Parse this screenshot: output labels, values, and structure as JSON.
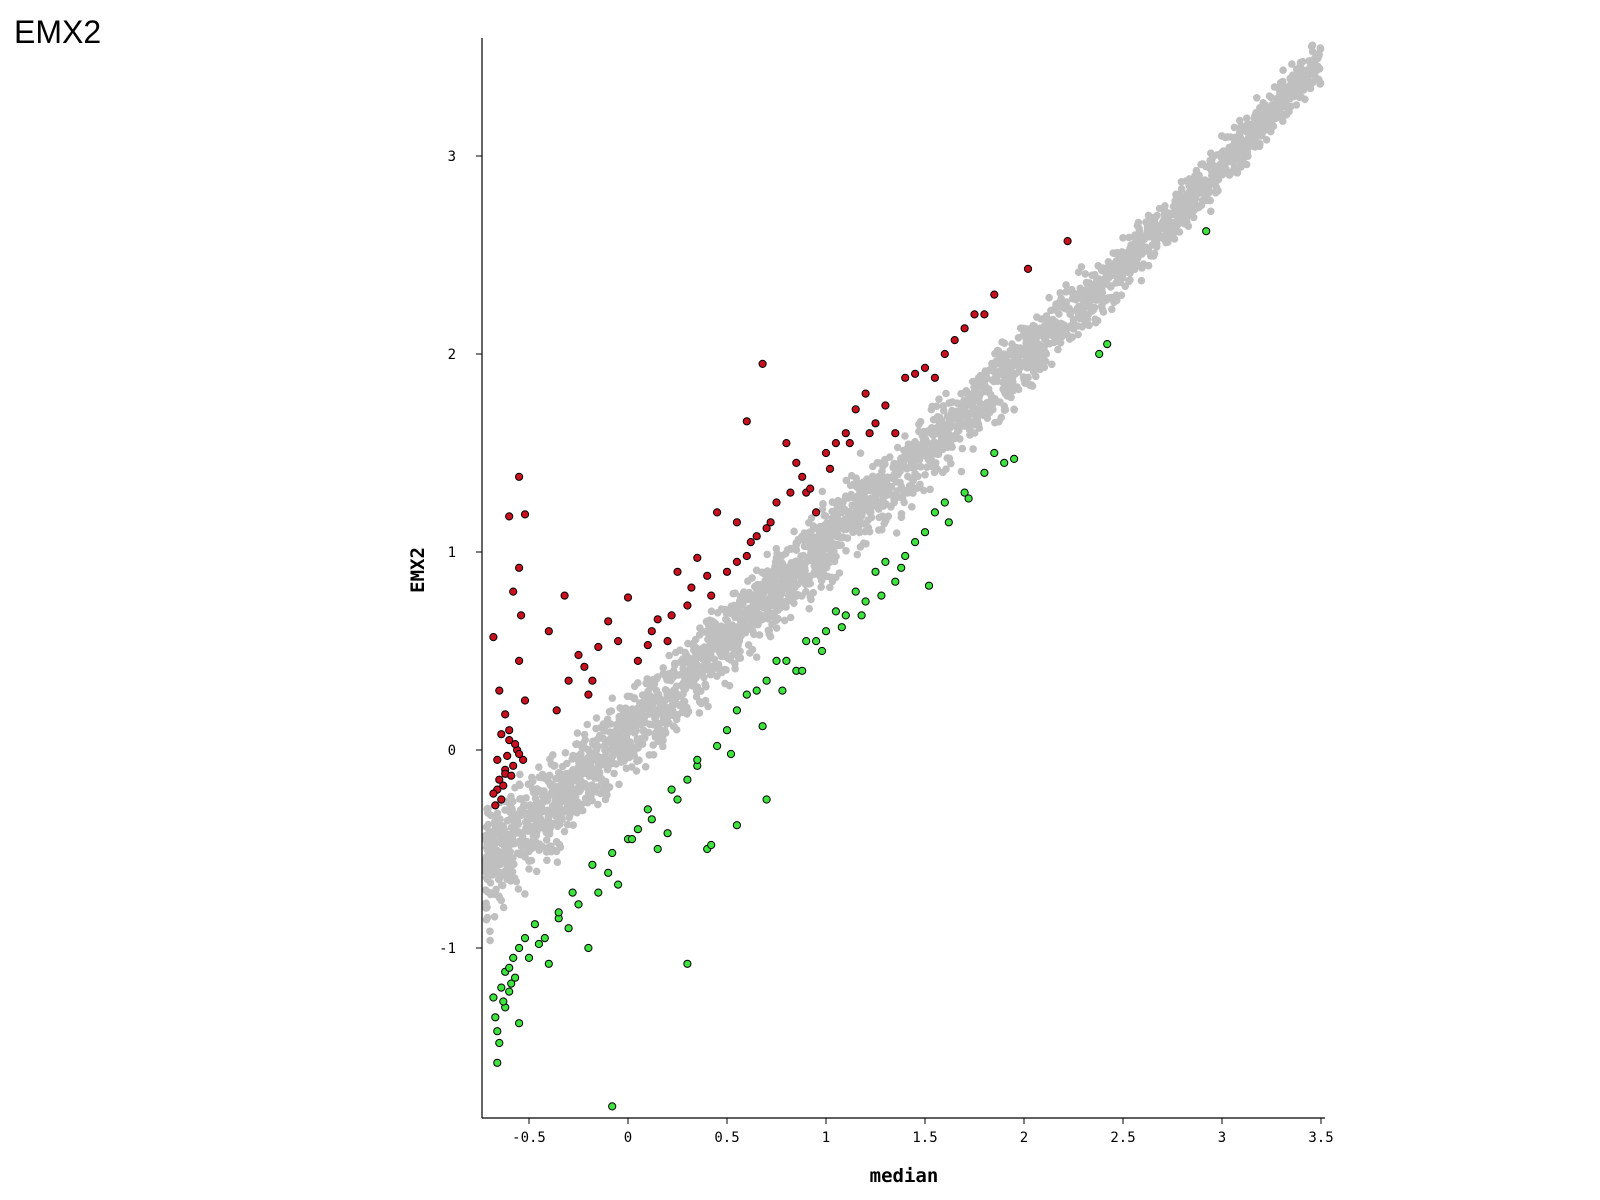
{
  "slide": {
    "title": "EMX2"
  },
  "chart_data": {
    "type": "scatter",
    "xlabel": "median",
    "ylabel": "EMX2",
    "xlim": [
      -0.73,
      3.55
    ],
    "ylim": [
      -1.85,
      3.6
    ],
    "x_ticks": [
      {
        "value": -0.5,
        "label": "-0.5"
      },
      {
        "value": 0,
        "label": "0"
      },
      {
        "value": 0.5,
        "label": "0.5"
      },
      {
        "value": 1,
        "label": "1"
      },
      {
        "value": 1.5,
        "label": "1.5"
      },
      {
        "value": 2,
        "label": "2"
      },
      {
        "value": 2.5,
        "label": "2.5"
      },
      {
        "value": 3,
        "label": "3"
      },
      {
        "value": 3.5,
        "label": "3.5"
      }
    ],
    "y_ticks": [
      {
        "value": -1,
        "label": "-1"
      },
      {
        "value": 0,
        "label": "0"
      },
      {
        "value": 1,
        "label": "1"
      },
      {
        "value": 2,
        "label": "2"
      },
      {
        "value": 3,
        "label": "3"
      }
    ],
    "colors": {
      "background_points": "#bfbfbf",
      "up": "#c8101e",
      "down": "#3fe33f",
      "outline": "#000000"
    },
    "background_trend": {
      "description_points": [
        [
          -0.7,
          -0.55
        ],
        [
          0,
          0.08
        ],
        [
          0.5,
          0.57
        ],
        [
          1,
          1.05
        ],
        [
          1.5,
          1.5
        ],
        [
          2,
          1.98
        ],
        [
          2.5,
          2.45
        ],
        [
          3,
          2.95
        ],
        [
          3.5,
          3.5
        ]
      ],
      "band_halfwidth": [
        [
          -0.7,
          0.45
        ],
        [
          0,
          0.3
        ],
        [
          1,
          0.3
        ],
        [
          2,
          0.25
        ],
        [
          3,
          0.18
        ]
      ]
    },
    "series": [
      {
        "role": "up",
        "x": [
          -0.68,
          -0.65,
          -0.62,
          -0.55,
          -0.55,
          -0.6,
          -0.58,
          -0.54,
          -0.55,
          -0.52,
          -0.4,
          -0.36,
          -0.32,
          -0.25,
          -0.2,
          -0.18,
          -0.1,
          -0.05,
          0.0,
          0.05,
          0.1,
          0.15,
          0.2,
          0.25,
          0.3,
          0.35,
          0.4,
          0.45,
          0.5,
          0.55,
          0.6,
          0.65,
          0.7,
          0.75,
          0.8,
          0.85,
          0.9,
          0.95,
          1.0,
          1.05,
          1.1,
          1.15,
          1.2,
          1.25,
          1.3,
          1.35,
          1.4,
          1.45,
          1.5,
          1.55,
          1.6,
          1.65,
          1.7,
          1.75,
          1.8,
          1.85,
          2.02,
          2.22,
          0.68,
          0.6,
          -0.52,
          -0.56,
          -0.53,
          -0.62,
          -0.6,
          -0.65,
          -0.58,
          -0.66,
          -0.64,
          -0.67,
          -0.62,
          -0.6,
          -0.57,
          -0.55,
          -0.63,
          -0.68,
          -0.66,
          -0.64,
          -0.61,
          -0.59,
          -0.3,
          -0.22,
          -0.15,
          0.12,
          0.22,
          0.32,
          0.42,
          0.55,
          0.62,
          0.72,
          0.82,
          0.88,
          0.92,
          1.02,
          1.12,
          1.22
        ],
        "y": [
          0.57,
          0.3,
          0.18,
          1.38,
          0.92,
          1.18,
          0.8,
          0.68,
          0.45,
          0.25,
          0.6,
          0.2,
          0.78,
          0.48,
          0.28,
          0.35,
          0.65,
          0.55,
          0.77,
          0.45,
          0.53,
          0.66,
          0.55,
          0.9,
          0.73,
          0.97,
          0.88,
          1.2,
          0.9,
          1.15,
          0.98,
          1.08,
          1.12,
          1.25,
          1.55,
          1.45,
          1.3,
          1.2,
          1.5,
          1.55,
          1.6,
          1.72,
          1.8,
          1.65,
          1.74,
          1.6,
          1.88,
          1.9,
          1.93,
          1.88,
          2.0,
          2.07,
          2.13,
          2.2,
          2.2,
          2.3,
          2.43,
          2.57,
          1.95,
          1.66,
          1.19,
          0.0,
          -0.05,
          -0.1,
          0.05,
          -0.15,
          -0.08,
          -0.2,
          -0.25,
          -0.28,
          -0.12,
          0.1,
          0.03,
          -0.02,
          -0.18,
          -0.22,
          -0.05,
          0.08,
          -0.03,
          -0.13,
          0.35,
          0.42,
          0.52,
          0.6,
          0.68,
          0.82,
          0.78,
          0.95,
          1.05,
          1.15,
          1.3,
          1.38,
          1.32,
          1.42,
          1.55,
          1.6
        ]
      },
      {
        "role": "down",
        "x": [
          -0.68,
          -0.66,
          -0.64,
          -0.62,
          -0.6,
          -0.58,
          -0.55,
          -0.5,
          -0.45,
          -0.4,
          -0.35,
          -0.3,
          -0.25,
          -0.2,
          -0.15,
          -0.1,
          -0.05,
          0.0,
          0.05,
          0.1,
          0.15,
          0.2,
          0.25,
          0.3,
          0.35,
          0.4,
          0.45,
          0.5,
          0.55,
          0.6,
          0.65,
          0.7,
          0.75,
          0.8,
          0.85,
          0.9,
          0.95,
          1.0,
          1.05,
          1.1,
          1.15,
          1.2,
          1.25,
          1.3,
          1.35,
          1.4,
          1.45,
          1.5,
          1.55,
          1.6,
          1.7,
          1.8,
          1.85,
          1.95,
          2.38,
          2.42,
          2.92,
          -0.08,
          0.3,
          -0.55,
          -0.62,
          -0.67,
          -0.65,
          -0.6,
          -0.57,
          -0.52,
          -0.47,
          -0.42,
          -0.35,
          -0.28,
          -0.18,
          -0.08,
          0.02,
          0.12,
          0.22,
          0.35,
          0.42,
          0.52,
          0.68,
          0.78,
          0.88,
          0.98,
          1.08,
          1.18,
          1.28,
          1.38,
          1.52,
          1.62,
          1.72,
          1.9,
          -0.66,
          -0.63,
          -0.59,
          0.55,
          0.7
        ],
        "y": [
          -1.25,
          -1.58,
          -1.2,
          -1.12,
          -1.1,
          -1.05,
          -1.38,
          -1.05,
          -0.98,
          -1.08,
          -0.85,
          -0.9,
          -0.78,
          -1.0,
          -0.72,
          -0.62,
          -0.68,
          -0.45,
          -0.4,
          -0.3,
          -0.5,
          -0.42,
          -0.25,
          -0.15,
          -0.08,
          -0.5,
          0.02,
          0.1,
          0.2,
          0.28,
          0.3,
          0.35,
          0.45,
          0.45,
          0.4,
          0.55,
          0.55,
          0.6,
          0.7,
          0.68,
          0.8,
          0.75,
          0.9,
          0.95,
          0.85,
          0.98,
          1.05,
          1.1,
          1.2,
          1.25,
          1.3,
          1.4,
          1.5,
          1.47,
          2.0,
          2.05,
          2.62,
          -1.8,
          -1.08,
          -1.0,
          -1.3,
          -1.35,
          -1.48,
          -1.22,
          -1.15,
          -0.95,
          -0.88,
          -0.95,
          -0.82,
          -0.72,
          -0.58,
          -0.52,
          -0.45,
          -0.35,
          -0.2,
          -0.05,
          -0.48,
          -0.02,
          0.12,
          0.3,
          0.4,
          0.5,
          0.62,
          0.68,
          0.78,
          0.92,
          0.83,
          1.15,
          1.27,
          1.45,
          -1.42,
          -1.27,
          -1.18,
          -0.38,
          -0.25
        ]
      }
    ]
  }
}
